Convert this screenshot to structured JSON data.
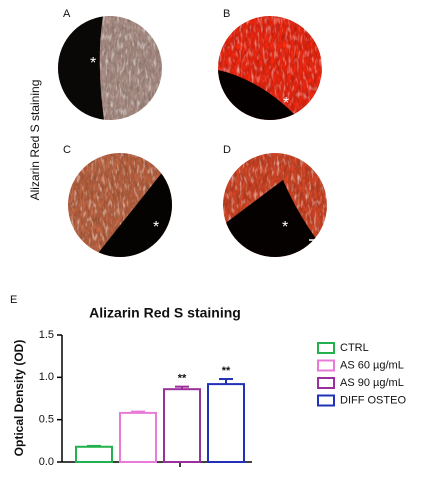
{
  "figure": {
    "side_label": "Alizarin Red S staining",
    "panels": [
      {
        "label": "A",
        "marker": "*"
      },
      {
        "label": "B",
        "marker": "*"
      },
      {
        "label": "C",
        "marker": "*"
      },
      {
        "label": "D",
        "marker": "*"
      }
    ],
    "chart_panel_label": "E"
  },
  "chart_data": {
    "type": "bar",
    "title": "Alizarin Red S staining",
    "y_label": "Optical Density (OD)",
    "categories": [
      "CTRL",
      "AS 60 µg/mL",
      "AS 90 µg/mL",
      "DIFF OSTEO"
    ],
    "values": [
      0.18,
      0.58,
      0.86,
      0.92
    ],
    "errors": [
      0.01,
      0.015,
      0.03,
      0.06
    ],
    "colors": [
      "#22b14c",
      "#e87ad8",
      "#9b2f9b",
      "#2230b8"
    ],
    "significance": [
      null,
      null,
      "**",
      "**"
    ],
    "ylim": [
      0,
      1.5
    ],
    "yticks": [
      {
        "value": 0,
        "label": "0.0"
      },
      0.5,
      {
        "value": 1,
        "label": "1.0"
      },
      1.5
    ],
    "legend": "right"
  }
}
